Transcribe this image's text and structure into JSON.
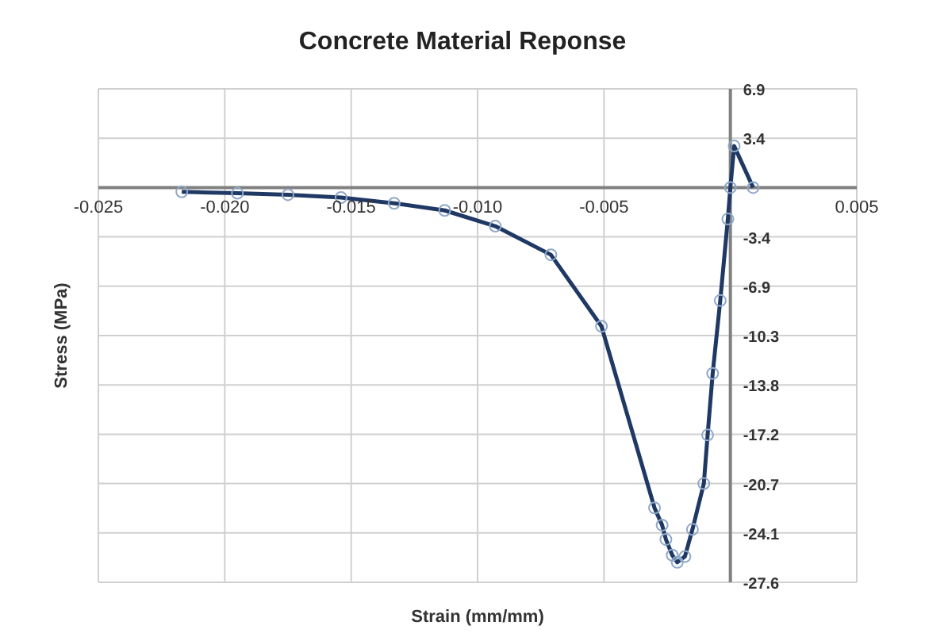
{
  "chart_data": {
    "type": "line",
    "title": "Concrete Material Reponse",
    "xlabel": "Strain (mm/mm)",
    "ylabel": "Stress (MPa)",
    "x": [
      -0.0217,
      -0.0195,
      -0.0175,
      -0.0154,
      -0.0133,
      -0.0113,
      -0.0093,
      -0.0071,
      -0.0051,
      -0.003,
      -0.0027,
      -0.00255,
      -0.0023,
      -0.0021,
      -0.0018,
      -0.0015,
      -0.00105,
      -0.0009,
      -0.0007,
      -0.0004,
      -0.0001,
      0,
      0.00015,
      0.0009
    ],
    "series": [
      {
        "color": "#1f3864",
        "values": [
          -0.3,
          -0.4,
          -0.5,
          -0.7,
          -1.1,
          -1.6,
          -2.7,
          -4.7,
          -9.7,
          -22.4,
          -23.6,
          -24.6,
          -25.7,
          -26.2,
          -25.8,
          -23.9,
          -20.7,
          -17.3,
          -13.0,
          -7.9,
          -2.2,
          0,
          2.9,
          0
        ]
      }
    ],
    "xlim": [
      -0.025,
      0.005
    ],
    "xticks": [
      {
        "value": -0.025,
        "label": "-0.025"
      },
      {
        "value": -0.02,
        "label": "-0.020"
      },
      {
        "value": -0.015,
        "label": "-0.015"
      },
      {
        "value": -0.01,
        "label": "-0.010"
      },
      {
        "value": -0.005,
        "label": "-0.005"
      },
      {
        "value": 0,
        "label": null
      },
      {
        "value": 0.005,
        "label": "0.005"
      }
    ],
    "ylim": [
      -27.6,
      6.9
    ],
    "yticks": [
      {
        "value": 6.9,
        "label": "6.9"
      },
      {
        "value": 3.45,
        "label": "3.4"
      },
      {
        "value": 0,
        "label": null
      },
      {
        "value": -3.45,
        "label": "-3.4"
      },
      {
        "value": -6.9,
        "label": "-6.9"
      },
      {
        "value": -10.35,
        "label": "-10.3"
      },
      {
        "value": -13.8,
        "label": "-13.8"
      },
      {
        "value": -17.25,
        "label": "-17.2"
      },
      {
        "value": -20.7,
        "label": "-20.7"
      },
      {
        "value": -24.15,
        "label": "-24.1"
      },
      {
        "value": -27.6,
        "label": "-27.6"
      }
    ],
    "grid": true,
    "marker": "circle",
    "line_style": "solid"
  }
}
